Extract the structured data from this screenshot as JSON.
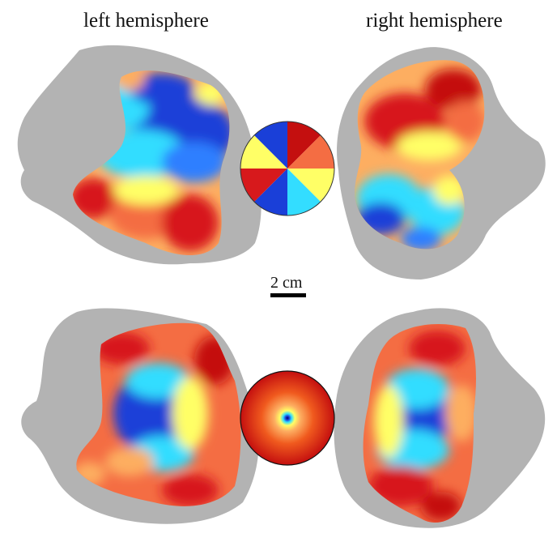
{
  "titles": {
    "left": "left hemisphere",
    "right": "right hemisphere"
  },
  "scale_bar": {
    "label": "2 cm"
  },
  "keys": {
    "top": "polar angle wheel",
    "bottom": "eccentricity disc"
  },
  "colors": {
    "cortex_gray": "#b3b3b3",
    "red": "#d7191c",
    "orange": "#fdae61",
    "yellow": "#ffff66",
    "cyan": "#33ddff",
    "blue": "#1a3fd8",
    "dark_red": "#8b0000",
    "background": "#ffffff"
  }
}
